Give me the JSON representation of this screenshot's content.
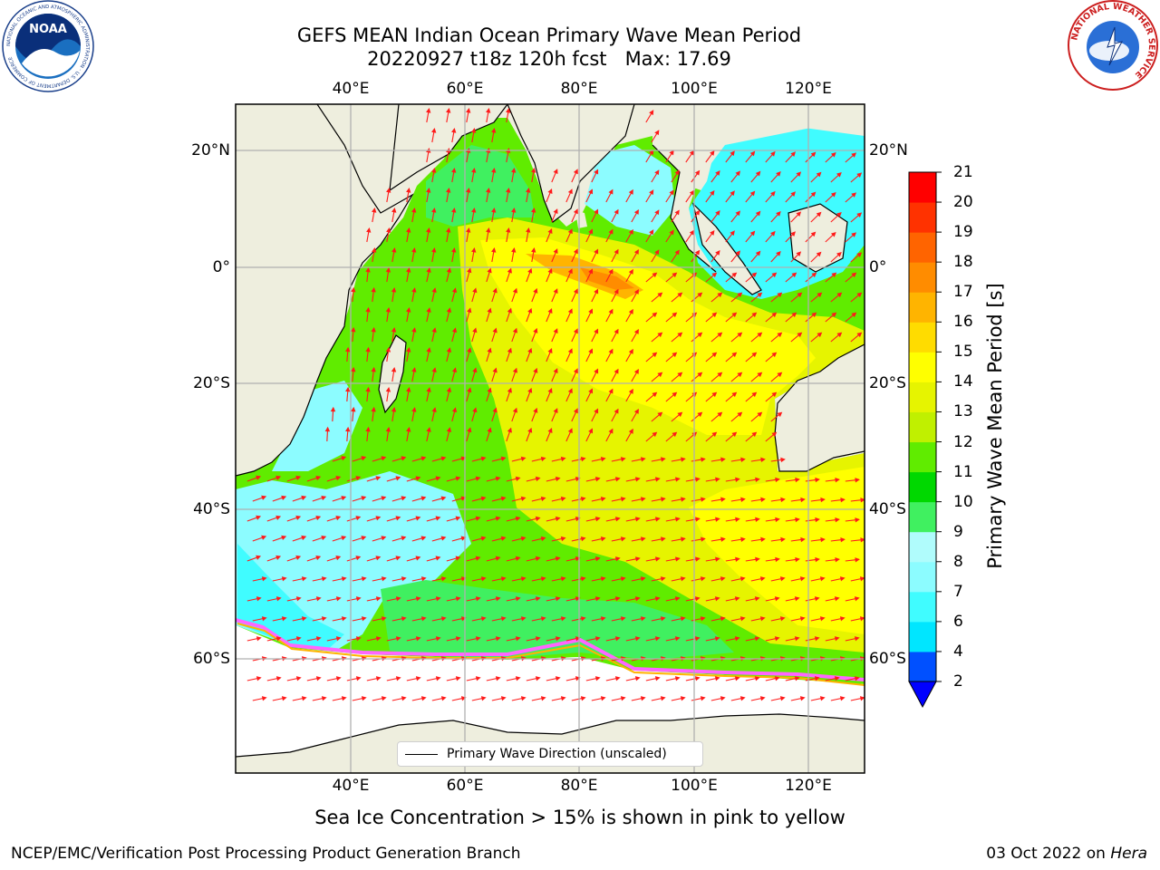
{
  "header": {
    "title_line1": "GEFS MEAN Indian Ocean Primary Wave Mean Period",
    "title_line2": "20220927 t18z 120h fcst   Max: 17.69"
  },
  "logos": {
    "noaa": "NOAA",
    "noaa_ring": "NATIONAL OCEANIC AND ATMOSPHERIC ADMINISTRATION · U.S. DEPARTMENT OF COMMERCE",
    "nws_ring": "NATIONAL WEATHER SERVICE"
  },
  "map": {
    "lon_ticks": [
      "40°E",
      "60°E",
      "80°E",
      "100°E",
      "120°E"
    ],
    "lat_ticks": [
      "20°N",
      "0°",
      "20°S",
      "40°S",
      "60°S"
    ],
    "legend_label": "Primary Wave Direction (unscaled)",
    "colors": {
      "land": "#eeeede",
      "ice_free_sea": "#ffffff",
      "arrow": "#ff1a1a"
    }
  },
  "colorbar": {
    "label": "Primary Wave Mean Period [s]",
    "ticks": [
      "2",
      "4",
      "6",
      "7",
      "8",
      "9",
      "10",
      "11",
      "12",
      "13",
      "14",
      "15",
      "16",
      "17",
      "18",
      "19",
      "20",
      "21"
    ],
    "colors": [
      "#0050ff",
      "#00e6ff",
      "#40fcff",
      "#8cfcff",
      "#b0fcfc",
      "#40f060",
      "#00d800",
      "#60ec00",
      "#c0f000",
      "#e6f400",
      "#ffff00",
      "#ffdc00",
      "#ffb400",
      "#ff8c00",
      "#ff6400",
      "#ff3200",
      "#ff0000"
    ],
    "extend_color": "#0000ff"
  },
  "footer": {
    "subtitle": "Sea Ice Concentration > 15% is shown in pink to yellow",
    "left": "NCEP/EMC/Verification Post Processing Product Generation Branch",
    "date": "03 Oct 2022 on",
    "host": "Hera"
  }
}
